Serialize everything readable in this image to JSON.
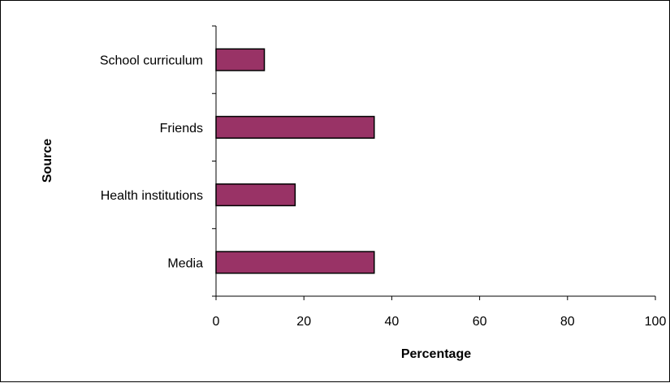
{
  "chart_data": {
    "type": "bar",
    "orientation": "horizontal",
    "categories": [
      "Media",
      "Health institutions",
      "Friends",
      "School curriculum"
    ],
    "values": [
      36,
      18,
      36,
      11
    ],
    "title": "",
    "xlabel": "Percentage",
    "ylabel": "Source",
    "xlim": [
      0,
      100
    ],
    "xticks": [
      "0",
      "20",
      "40",
      "60",
      "80",
      "100"
    ],
    "grid": false,
    "legend": "none",
    "bar_color": "#993366",
    "bar_outline": "#000000"
  }
}
